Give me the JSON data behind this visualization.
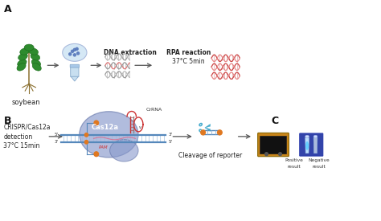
{
  "fig_width": 4.74,
  "fig_height": 2.75,
  "dpi": 100,
  "bg_color": "#ffffff",
  "panel_A_label": "A",
  "panel_B_label": "B",
  "panel_C_label": "C",
  "soybean_label": "soybean",
  "dna_extraction_label": "DNA extraction",
  "rpa_reaction_label": "RPA reaction",
  "rpa_condition_label": "37°C 5min",
  "crispr_label": "CRISPR/Cas12a",
  "detection_label": "detection",
  "temp_label": "37°C 15min",
  "cas12a_label": "Cas12a",
  "crRNA_label": "CrRNA",
  "PAM_label": "PAM",
  "cleavage_label": "Cleavage of reporter",
  "positive_label": "Positive",
  "negative_label": "Negative",
  "result_label1": "result",
  "result_label2": "result",
  "green_dark": "#1a6b1a",
  "green_leaf": "#2e8b2e",
  "dna_gray1": "#888888",
  "dna_gray2": "#aaaaaa",
  "dna_red1": "#cc4444",
  "dna_red2": "#e88888",
  "blue_tube": "#c8dff0",
  "blue_oval_fill": "#8899cc",
  "blue_oval_edge": "#6677aa",
  "dna_strand_color": "#5588bb",
  "dna_strand2_color": "#ee9999",
  "arrow_color": "#555555",
  "orange_bead": "#e07820",
  "scissors_color": "#44aacc",
  "reporter_line": "#44aacc",
  "tan_box": "#c8851a",
  "dark_box": "#111111",
  "blue_box": "#3355aa",
  "tube_fill": "#aaddff",
  "crRNA_color": "#cc3333",
  "pink_line": "#dd6688"
}
